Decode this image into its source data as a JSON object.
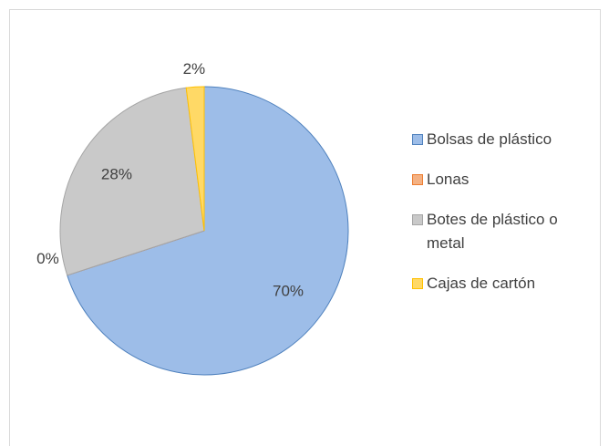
{
  "chart_data": {
    "type": "pie",
    "categories": [
      "Bolsas de plástico",
      "Lonas",
      "Botes de plástico o metal",
      "Cajas de cartón"
    ],
    "values": [
      70,
      0,
      28,
      2
    ],
    "value_labels": [
      "70%",
      "0%",
      "28%",
      "2%"
    ],
    "colors": [
      "#9dbde8",
      "#f4b183",
      "#c9c9c9",
      "#ffd966"
    ],
    "strokes": [
      "#4f81bd",
      "#ed7d31",
      "#a5a5a5",
      "#ffc000"
    ],
    "legend": "right"
  }
}
